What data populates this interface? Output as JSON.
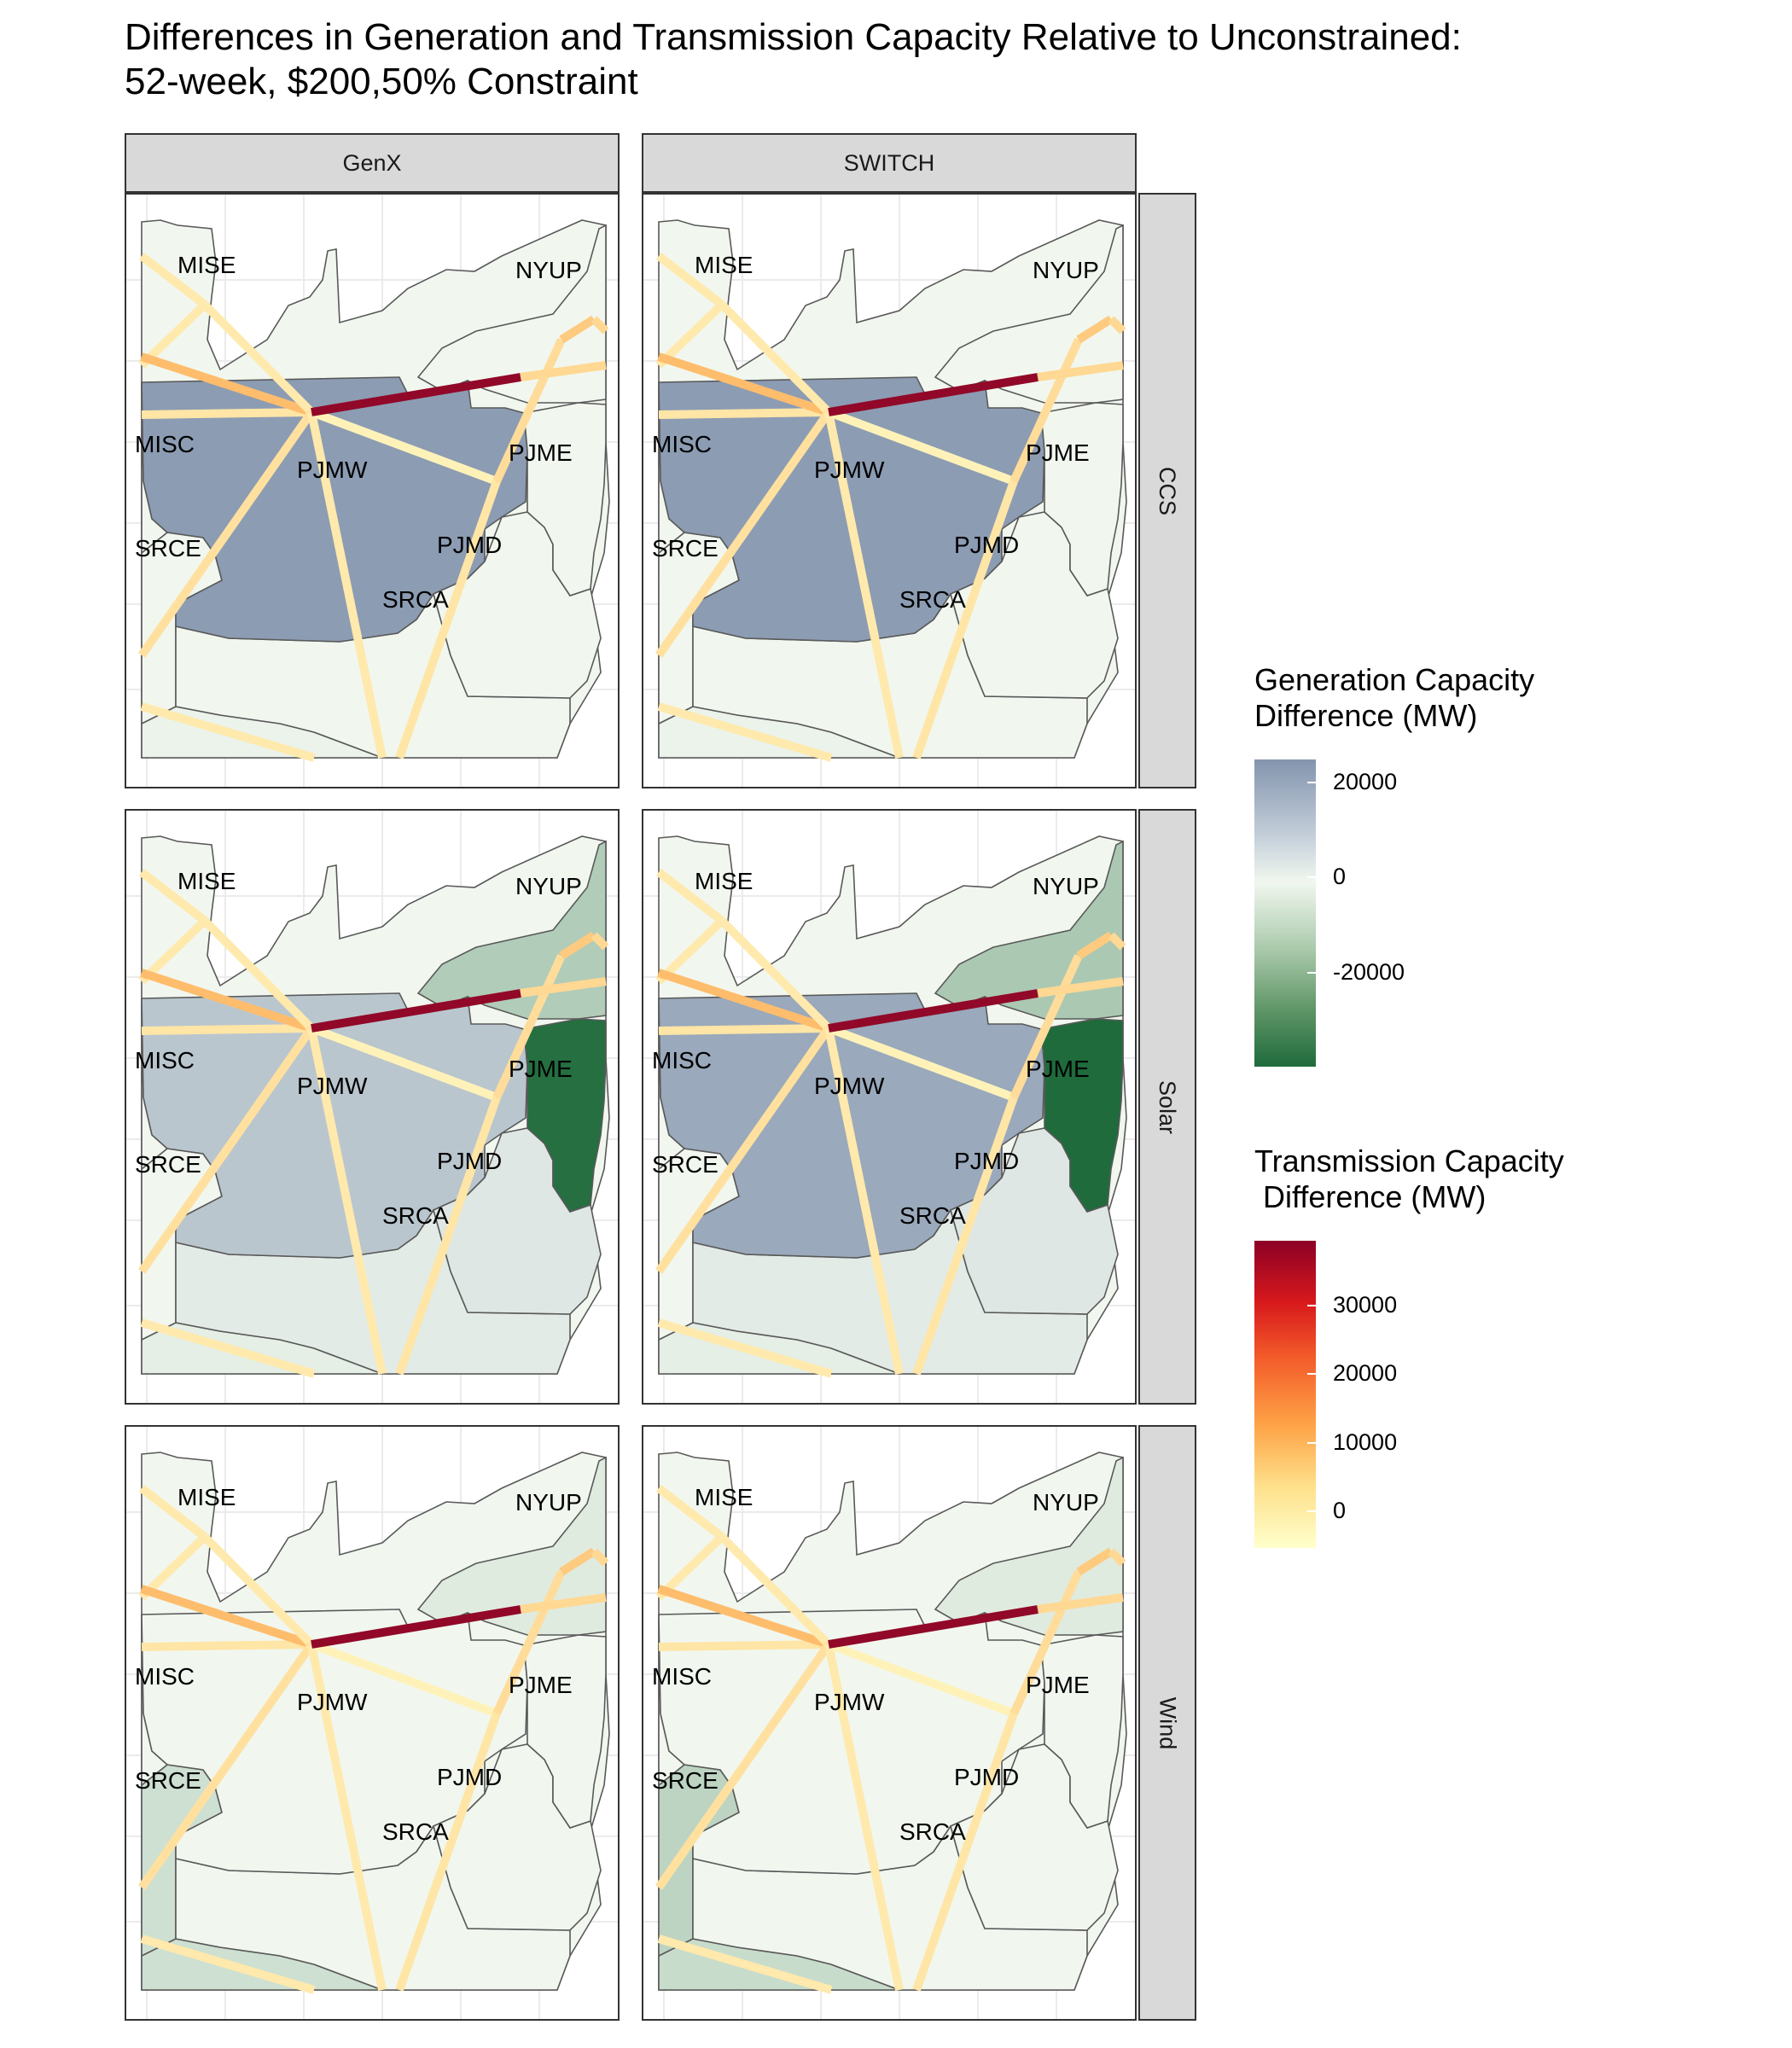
{
  "title_line1": "Differences in Generation and Transmission Capacity Relative to Unconstrained:",
  "title_line2": "52-week, $200,50% Constraint",
  "columns": [
    "GenX",
    "SWITCH"
  ],
  "rows": [
    "CCS",
    "Solar",
    "Wind"
  ],
  "zone_labels": [
    "MISE",
    "NYUP",
    "MISC",
    "PJMW",
    "PJME",
    "PJMD",
    "SRCE",
    "SRCA"
  ],
  "colors": {
    "gen_high": "#8394ad",
    "gen_mid": "#f1f7ef",
    "gen_low": "#1f6b3c",
    "tx_high": "#8c0026",
    "tx_mid": "#fea346",
    "tx_low": "#ffffcc"
  },
  "legend": {
    "generation": {
      "title": "Generation Capacity\nDifference (MW)",
      "ticks": [
        "20000",
        "0",
        "-20000"
      ]
    },
    "transmission": {
      "title": "Transmission Capacity\n Difference (MW)",
      "ticks": [
        "30000",
        "20000",
        "10000",
        "0"
      ]
    }
  },
  "chart_data": {
    "type": "map",
    "facets": {
      "column_var": [
        "GenX",
        "SWITCH"
      ],
      "row_var": [
        "CCS",
        "Solar",
        "Wind"
      ]
    },
    "generation_difference_mw": {
      "GenX": {
        "CCS": {
          "PJMW": 22000,
          "SRCA": 0,
          "PJMD": 0,
          "PJME": 0,
          "NYUP": 0,
          "MISE": 0,
          "MISC": 0,
          "SRCE": 0,
          "south": -1000
        },
        "Solar": {
          "PJMW": 12000,
          "SRCA": 3000,
          "PJMD": 4000,
          "PJME": -35000,
          "NYUP": -11000,
          "MISE": 0,
          "MISC": 0,
          "SRCE": 0,
          "south": -2000
        },
        "Wind": {
          "PJMW": 0,
          "SRCA": 0,
          "PJMD": 0,
          "PJME": 0,
          "NYUP": -3000,
          "MISE": 0,
          "MISC": 0,
          "SRCE": -6000,
          "south": -6000
        }
      },
      "SWITCH": {
        "CCS": {
          "PJMW": 22000,
          "SRCA": 0,
          "PJMD": 0,
          "PJME": 0,
          "NYUP": 0,
          "MISE": 0,
          "MISC": 0,
          "SRCE": 0,
          "south": -1000
        },
        "Solar": {
          "PJMW": 19000,
          "SRCA": 3000,
          "PJMD": 4000,
          "PJME": -40000,
          "NYUP": -12000,
          "MISE": 0,
          "MISC": 0,
          "SRCE": 0,
          "south": -2000
        },
        "Wind": {
          "PJMW": 0,
          "SRCA": 0,
          "PJMD": 0,
          "PJME": 0,
          "NYUP": -3000,
          "MISE": 0,
          "MISC": 0,
          "SRCE": -9000,
          "south": -7000
        }
      }
    },
    "transmission_difference_mw": {
      "GenX": {
        "CCS": {
          "PJMW-PJME": 38000,
          "PJMW-MISC": 12000,
          "PJME-NYUP": 9000,
          "PJMW-MISE": 2000,
          "PJMW-SRCE": 4000,
          "PJMW-SRCA": 2000,
          "PJMW-PJMD": 0,
          "PJMD-PJME": 5000,
          "PJMD-SRCA": 3000,
          "PJMW-west": 3000,
          "MISE-west": 2000,
          "MISC-west": 4000,
          "SRCE-south": 2000,
          "NYUP-east": 6000,
          "PJME-east": 6000
        },
        "Solar": {
          "PJMW-PJME": 38000,
          "PJMW-MISC": 12000,
          "PJME-NYUP": 9000,
          "PJMW-MISE": 2000,
          "PJMW-SRCE": 4000,
          "PJMW-SRCA": 2000,
          "PJMW-PJMD": 0,
          "PJMD-PJME": 5000,
          "PJMD-SRCA": 3000,
          "PJMW-west": 3000,
          "MISE-west": 2000,
          "MISC-west": 4000,
          "SRCE-south": 2000,
          "NYUP-east": 6000,
          "PJME-east": 6000
        },
        "Wind": {
          "PJMW-PJME": 38000,
          "PJMW-MISC": 12000,
          "PJME-NYUP": 9000,
          "PJMW-MISE": 2000,
          "PJMW-SRCE": 4000,
          "PJMW-SRCA": 2000,
          "PJMW-PJMD": 0,
          "PJMD-PJME": 5000,
          "PJMD-SRCA": 3000,
          "PJMW-west": 3000,
          "MISE-west": 2000,
          "MISC-west": 4000,
          "SRCE-south": 2000,
          "NYUP-east": 6000,
          "PJME-east": 6000
        }
      },
      "SWITCH": {
        "CCS": {
          "PJMW-PJME": 38000,
          "PJMW-MISC": 12000,
          "PJME-NYUP": 9000,
          "PJMW-MISE": 2000,
          "PJMW-SRCE": 4000,
          "PJMW-SRCA": 2000,
          "PJMW-PJMD": 0,
          "PJMD-PJME": 5000,
          "PJMD-SRCA": 3000,
          "PJMW-west": 3000,
          "MISE-west": 2000,
          "MISC-west": 4000,
          "SRCE-south": 2000,
          "NYUP-east": 6000,
          "PJME-east": 6000
        },
        "Solar": {
          "PJMW-PJME": 38000,
          "PJMW-MISC": 12000,
          "PJME-NYUP": 9000,
          "PJMW-MISE": 2000,
          "PJMW-SRCE": 4000,
          "PJMW-SRCA": 2000,
          "PJMW-PJMD": 0,
          "PJMD-PJME": 5000,
          "PJMD-SRCA": 3000,
          "PJMW-west": 3000,
          "MISE-west": 2000,
          "MISC-west": 4000,
          "SRCE-south": 2000,
          "NYUP-east": 6000,
          "PJME-east": 6000
        },
        "Wind": {
          "PJMW-PJME": 38000,
          "PJMW-MISC": 12000,
          "PJME-NYUP": 9000,
          "PJMW-MISE": 2000,
          "PJMW-SRCE": 4000,
          "PJMW-SRCA": 2000,
          "PJMW-PJMD": 0,
          "PJMD-PJME": 5000,
          "PJMD-SRCA": 3000,
          "PJMW-west": 3000,
          "MISE-west": 2000,
          "MISC-west": 4000,
          "SRCE-south": 2000,
          "NYUP-east": 6000,
          "PJME-east": 6000
        }
      }
    },
    "generation_scale_mw": [
      -36000,
      24000
    ],
    "transmission_scale_mw": [
      -3000,
      39000
    ]
  }
}
